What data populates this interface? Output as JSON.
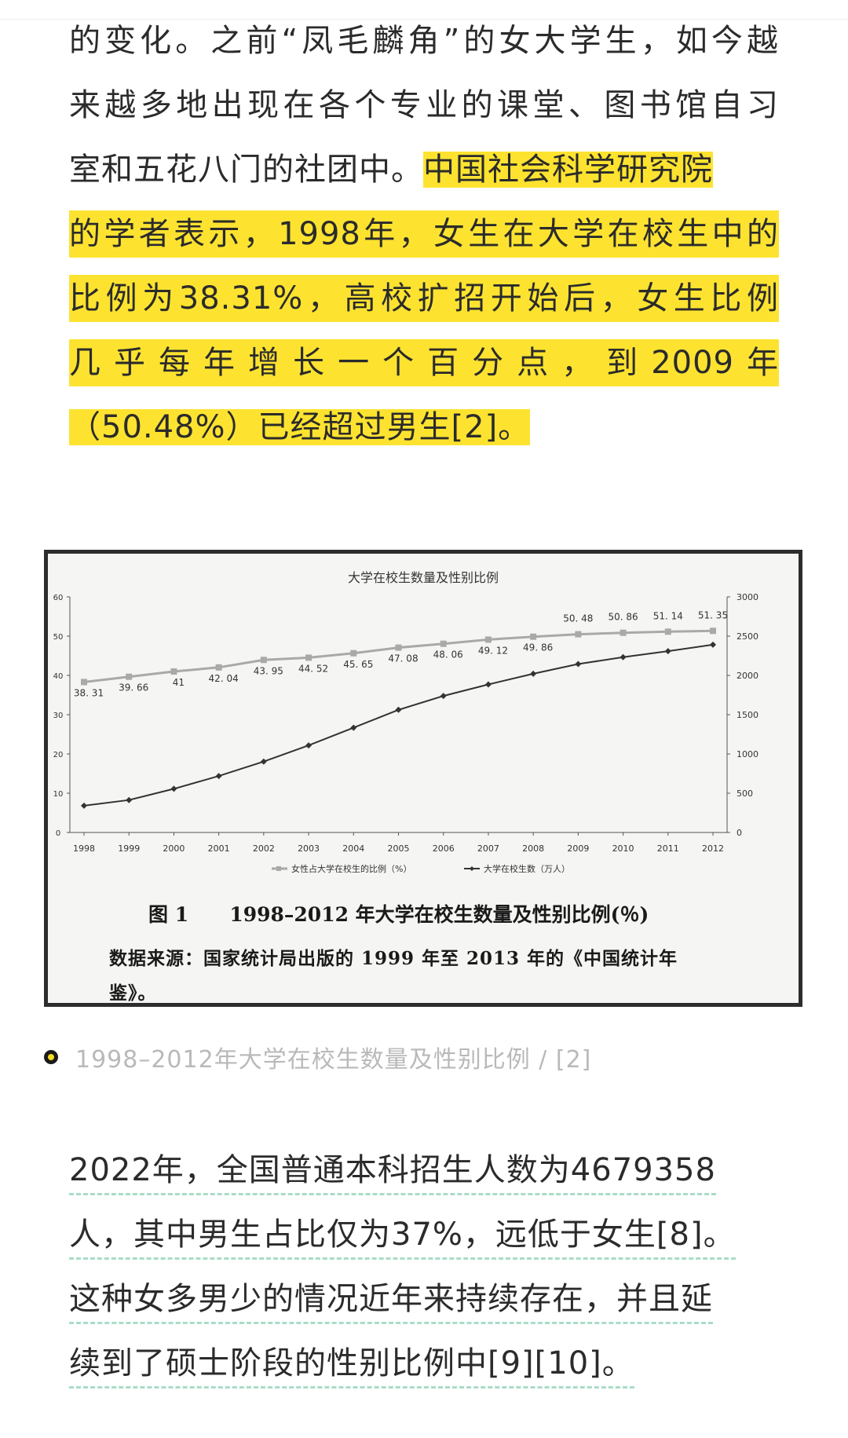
{
  "article": {
    "para1": {
      "line1": "的变化。之前“凤毛麟角”的女大学生，如今越",
      "line2": "来越多地出现在各个专业的课堂、图书馆自习",
      "line3_plain": "室和五花八门的社团中。",
      "line3_hl": "中国社会科学研究院",
      "line4": "的学者表示，1998年，女生在大学在校生中的",
      "line5": "比例为38.31%，高校扩招开始后，女生比例",
      "line6": "几乎每年增长一个百分点，到2009年",
      "line7": "（50.48%）已经超过男生[2]。"
    },
    "para2": {
      "line1": "2022年，全国普通本科招生人数为4679358",
      "line2": "人，其中男生占比仅为37%，远低于女生[8]。",
      "line3": "这种女多男少的情况近年来持续存在，并且延",
      "line4": "续到了硕士阶段的性别比例中[9][10]。"
    },
    "highlight_color": "#fde330",
    "underline_color": "#a9ddc6"
  },
  "figure": {
    "caption_title": "图 1      1998–2012 年大学在校生数量及性别比例(％)",
    "source_line1": "数据来源：国家统计局出版的 1999 年至 2013 年的《中国统计年",
    "source_line2": "鉴》。",
    "caption": "1998–2012年大学在校生数量及性别比例 / [2]"
  },
  "chart_data": {
    "type": "line",
    "title": "大学在校生数量及性别比例",
    "x": [
      "1998",
      "1999",
      "2000",
      "2001",
      "2002",
      "2003",
      "2004",
      "2005",
      "2006",
      "2007",
      "2008",
      "2009",
      "2010",
      "2011",
      "2012"
    ],
    "series": [
      {
        "name": "女性占大学在校生的比例（%）",
        "axis": "left",
        "values": [
          38.31,
          39.66,
          41,
          42.04,
          43.95,
          44.52,
          45.65,
          47.08,
          48.06,
          49.12,
          49.86,
          50.48,
          50.86,
          51.14,
          51.35
        ],
        "labels": [
          "38. 31",
          "39. 66",
          "41",
          "42. 04",
          "43. 95",
          "44. 52",
          "45. 65",
          "47. 08",
          "48. 06",
          "49. 12",
          "49. 86",
          "50. 48",
          "50. 86",
          "51. 14",
          "51. 35"
        ],
        "color": "#a9a9a9"
      },
      {
        "name": "大学在校生数（万人）",
        "axis": "right",
        "values": [
          341,
          413,
          556,
          719,
          903,
          1109,
          1334,
          1562,
          1739,
          1885,
          2021,
          2145,
          2232,
          2309,
          2391
        ],
        "color": "#333333"
      }
    ],
    "ylim_left": [
      0,
      60
    ],
    "yticks_left": [
      "0",
      "10",
      "20",
      "30",
      "40",
      "50",
      "60"
    ],
    "ylim_right": [
      0,
      3000
    ],
    "yticks_right": [
      "0",
      "500",
      "1000",
      "1500",
      "2000",
      "2500",
      "3000"
    ],
    "grid": false,
    "legend": "bottom"
  }
}
